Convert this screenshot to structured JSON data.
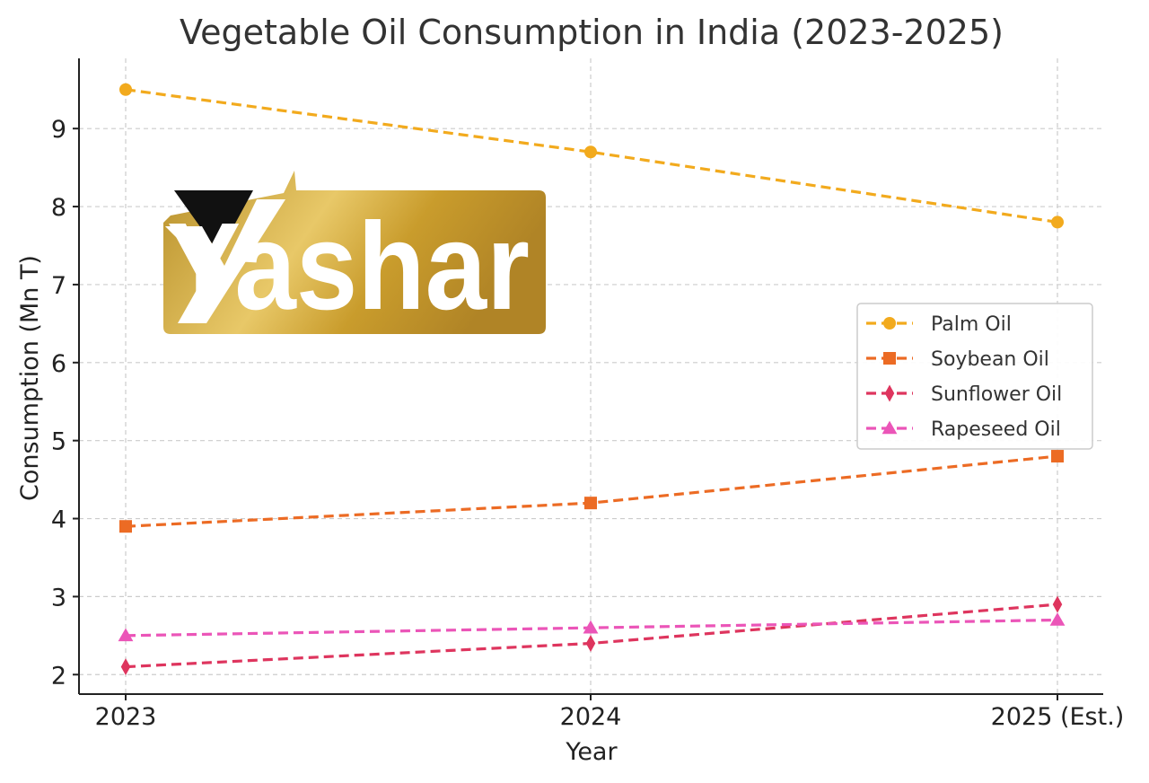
{
  "chart_data": {
    "type": "line",
    "title": "Vegetable Oil Consumption in India (2023-2025)",
    "xlabel": "Year",
    "ylabel": "Consumption (Mn T)",
    "categories": [
      "2023",
      "2024",
      "2025 (Est.)"
    ],
    "ylim": [
      1.75,
      9.9
    ],
    "yticks": [
      2,
      3,
      4,
      5,
      6,
      7,
      8,
      9
    ],
    "grid": true,
    "legend_position": "center-right",
    "series": [
      {
        "name": "Palm Oil",
        "values": [
          9.5,
          8.7,
          7.8
        ],
        "color": "#F2AA1D",
        "marker": "circle"
      },
      {
        "name": "Soybean Oil",
        "values": [
          3.9,
          4.2,
          4.8
        ],
        "color": "#EC6B24",
        "marker": "square"
      },
      {
        "name": "Sunflower Oil",
        "values": [
          2.1,
          2.4,
          2.9
        ],
        "color": "#DE355E",
        "marker": "diamond"
      },
      {
        "name": "Rapeseed Oil",
        "values": [
          2.5,
          2.6,
          2.7
        ],
        "color": "#EB55B8",
        "marker": "triangle"
      }
    ]
  },
  "logo": {
    "text": "Yashar",
    "gold": "#C9A030",
    "black": "#111111"
  }
}
